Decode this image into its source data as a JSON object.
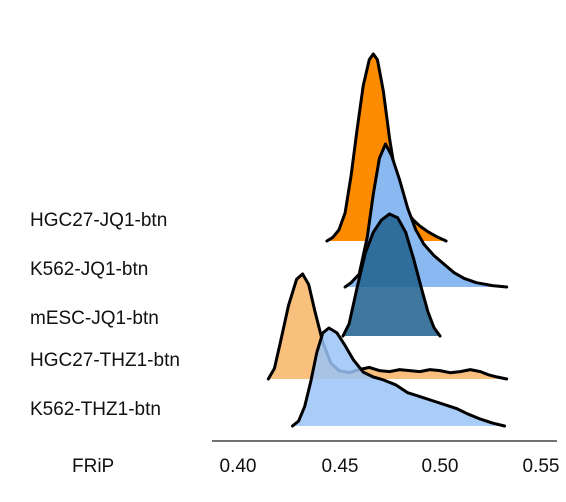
{
  "chart_data": {
    "type": "ridgeline",
    "title": "",
    "xlabel": "FRiP",
    "ylabel": "",
    "xlim": [
      0.38,
      0.55
    ],
    "x_ticks": [
      "0.40",
      "0.45",
      "0.50",
      "0.55"
    ],
    "x_tick_values": [
      0.4,
      0.45,
      0.5,
      0.55
    ],
    "grid": false,
    "legend": "none",
    "row_labels": [
      "HGC27-JQ1-btn",
      "K562-JQ1-btn",
      "mESC-JQ1-btn",
      "HGC27-THZ1-btn",
      "K562-THZ1-btn"
    ],
    "series": [
      {
        "name": "HGC27-JQ1-btn",
        "color": "#FF8C00",
        "points": [
          [
            0.444,
            0.0
          ],
          [
            0.447,
            0.02
          ],
          [
            0.45,
            0.06
          ],
          [
            0.453,
            0.15
          ],
          [
            0.456,
            0.35
          ],
          [
            0.459,
            0.6
          ],
          [
            0.462,
            0.83
          ],
          [
            0.465,
            0.97
          ],
          [
            0.467,
            1.0
          ],
          [
            0.469,
            0.97
          ],
          [
            0.472,
            0.8
          ],
          [
            0.475,
            0.55
          ],
          [
            0.478,
            0.35
          ],
          [
            0.481,
            0.22
          ],
          [
            0.484,
            0.15
          ],
          [
            0.487,
            0.11
          ],
          [
            0.49,
            0.08
          ],
          [
            0.494,
            0.05
          ],
          [
            0.498,
            0.025
          ],
          [
            0.503,
            0.0
          ]
        ]
      },
      {
        "name": "K562-JQ1-btn",
        "color": "#8AB8F0",
        "points": [
          [
            0.453,
            0.0
          ],
          [
            0.456,
            0.03
          ],
          [
            0.46,
            0.09
          ],
          [
            0.464,
            0.35
          ],
          [
            0.467,
            0.65
          ],
          [
            0.47,
            0.9
          ],
          [
            0.473,
            1.0
          ],
          [
            0.476,
            0.92
          ],
          [
            0.48,
            0.75
          ],
          [
            0.484,
            0.55
          ],
          [
            0.488,
            0.4
          ],
          [
            0.492,
            0.3
          ],
          [
            0.497,
            0.22
          ],
          [
            0.502,
            0.16
          ],
          [
            0.507,
            0.1
          ],
          [
            0.512,
            0.06
          ],
          [
            0.518,
            0.03
          ],
          [
            0.526,
            0.01
          ],
          [
            0.533,
            0.0
          ]
        ]
      },
      {
        "name": "mESC-JQ1-btn",
        "color": "#1F5F8E",
        "points": [
          [
            0.452,
            0.0
          ],
          [
            0.455,
            0.1
          ],
          [
            0.459,
            0.4
          ],
          [
            0.463,
            0.68
          ],
          [
            0.467,
            0.85
          ],
          [
            0.471,
            0.95
          ],
          [
            0.475,
            1.0
          ],
          [
            0.479,
            0.97
          ],
          [
            0.483,
            0.85
          ],
          [
            0.487,
            0.63
          ],
          [
            0.491,
            0.38
          ],
          [
            0.494,
            0.2
          ],
          [
            0.497,
            0.07
          ],
          [
            0.5,
            0.0
          ]
        ]
      },
      {
        "name": "HGC27-THZ1-btn",
        "color": "#F7B466",
        "points": [
          [
            0.415,
            0.0
          ],
          [
            0.418,
            0.1
          ],
          [
            0.421,
            0.35
          ],
          [
            0.425,
            0.7
          ],
          [
            0.429,
            0.95
          ],
          [
            0.432,
            1.0
          ],
          [
            0.435,
            0.9
          ],
          [
            0.438,
            0.65
          ],
          [
            0.442,
            0.35
          ],
          [
            0.446,
            0.15
          ],
          [
            0.45,
            0.08
          ],
          [
            0.455,
            0.06
          ],
          [
            0.46,
            0.09
          ],
          [
            0.465,
            0.11
          ],
          [
            0.47,
            0.08
          ],
          [
            0.475,
            0.07
          ],
          [
            0.48,
            0.09
          ],
          [
            0.485,
            0.08
          ],
          [
            0.49,
            0.07
          ],
          [
            0.495,
            0.09
          ],
          [
            0.5,
            0.08
          ],
          [
            0.505,
            0.06
          ],
          [
            0.51,
            0.07
          ],
          [
            0.515,
            0.09
          ],
          [
            0.52,
            0.07
          ],
          [
            0.524,
            0.04
          ],
          [
            0.528,
            0.02
          ],
          [
            0.533,
            0.0
          ]
        ]
      },
      {
        "name": "K562-THZ1-btn",
        "color": "#9BC3F7",
        "points": [
          [
            0.427,
            0.0
          ],
          [
            0.43,
            0.05
          ],
          [
            0.433,
            0.2
          ],
          [
            0.436,
            0.45
          ],
          [
            0.439,
            0.75
          ],
          [
            0.442,
            0.95
          ],
          [
            0.445,
            1.0
          ],
          [
            0.449,
            0.95
          ],
          [
            0.453,
            0.82
          ],
          [
            0.457,
            0.68
          ],
          [
            0.462,
            0.55
          ],
          [
            0.467,
            0.5
          ],
          [
            0.472,
            0.47
          ],
          [
            0.478,
            0.42
          ],
          [
            0.484,
            0.34
          ],
          [
            0.49,
            0.3
          ],
          [
            0.496,
            0.26
          ],
          [
            0.502,
            0.22
          ],
          [
            0.508,
            0.18
          ],
          [
            0.514,
            0.12
          ],
          [
            0.52,
            0.07
          ],
          [
            0.526,
            0.03
          ],
          [
            0.532,
            0.0
          ]
        ]
      }
    ]
  }
}
